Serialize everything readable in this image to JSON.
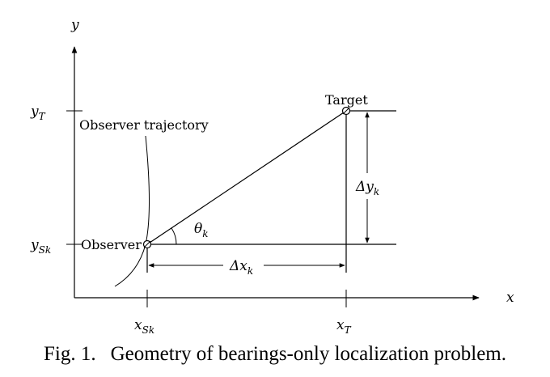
{
  "labels": {
    "axis_x": "x",
    "axis_y": "y",
    "y_target": "y",
    "y_target_sub": "T",
    "y_observer": "y",
    "y_observer_sub": "Sk",
    "x_observer": "x",
    "x_observer_sub": "Sk",
    "x_target": "x",
    "x_target_sub": "T",
    "target": "Target",
    "observer": "Observer",
    "trajectory": "Observer trajectory",
    "angle": "θ",
    "angle_sub": "k",
    "delta_x": "Δx",
    "delta_x_sub": "k",
    "delta_y": "Δy",
    "delta_y_sub": "k"
  },
  "caption": {
    "number": "Fig. 1.",
    "text": "Geometry of bearings-only localization problem."
  }
}
